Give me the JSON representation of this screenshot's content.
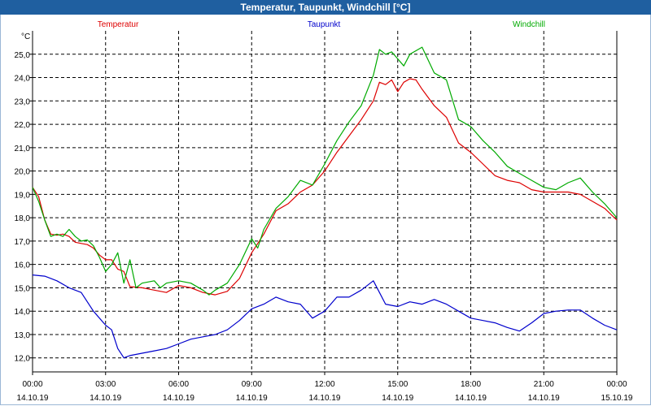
{
  "window": {
    "title": "Temperatur, Taupunkt, Windchill [°C]"
  },
  "chart_data": {
    "type": "line",
    "title": "Temperatur, Taupunkt, Windchill [°C]",
    "ylabel": "°C",
    "ylim": [
      11.4,
      26.0
    ],
    "xlim": [
      0,
      24
    ],
    "y_ticks": [
      12.0,
      13.0,
      14.0,
      15.0,
      16.0,
      17.0,
      18.0,
      19.0,
      20.0,
      21.0,
      22.0,
      23.0,
      24.0,
      25.0
    ],
    "y_tick_labels": [
      "12,0",
      "13,0",
      "14,0",
      "15,0",
      "16,0",
      "17,0",
      "18,0",
      "19,0",
      "20,0",
      "21,0",
      "22,0",
      "23,0",
      "24,0",
      "25,0"
    ],
    "x_ticks": [
      {
        "h": 0,
        "time": "00:00",
        "date": "14.10.19"
      },
      {
        "h": 3,
        "time": "03:00",
        "date": "14.10.19"
      },
      {
        "h": 6,
        "time": "06:00",
        "date": "14.10.19"
      },
      {
        "h": 9,
        "time": "09:00",
        "date": "14.10.19"
      },
      {
        "h": 12,
        "time": "12:00",
        "date": "14.10.19"
      },
      {
        "h": 15,
        "time": "15:00",
        "date": "14.10.19"
      },
      {
        "h": 18,
        "time": "18:00",
        "date": "14.10.19"
      },
      {
        "h": 21,
        "time": "21:00",
        "date": "14.10.19"
      },
      {
        "h": 24,
        "time": "00:00",
        "date": "15.10.19"
      }
    ],
    "grid": true,
    "series": [
      {
        "name": "Temperatur",
        "color": "#dd0000",
        "points": [
          [
            0,
            19.3
          ],
          [
            0.25,
            18.9
          ],
          [
            0.5,
            17.9
          ],
          [
            0.75,
            17.3
          ],
          [
            1.0,
            17.25
          ],
          [
            1.25,
            17.3
          ],
          [
            1.5,
            17.2
          ],
          [
            1.75,
            16.95
          ],
          [
            2.0,
            16.9
          ],
          [
            2.25,
            16.85
          ],
          [
            2.5,
            16.7
          ],
          [
            2.75,
            16.4
          ],
          [
            3.0,
            16.2
          ],
          [
            3.25,
            16.2
          ],
          [
            3.5,
            15.8
          ],
          [
            3.75,
            15.7
          ],
          [
            4.0,
            15.05
          ],
          [
            4.5,
            15.0
          ],
          [
            5.0,
            14.9
          ],
          [
            5.5,
            14.8
          ],
          [
            6.0,
            15.1
          ],
          [
            6.5,
            15.0
          ],
          [
            7.0,
            14.8
          ],
          [
            7.5,
            14.7
          ],
          [
            8.0,
            14.85
          ],
          [
            8.5,
            15.4
          ],
          [
            9.0,
            16.5
          ],
          [
            9.5,
            17.3
          ],
          [
            10.0,
            18.3
          ],
          [
            10.5,
            18.6
          ],
          [
            11.0,
            19.1
          ],
          [
            11.5,
            19.4
          ],
          [
            12.0,
            20.0
          ],
          [
            12.5,
            20.8
          ],
          [
            13.0,
            21.5
          ],
          [
            13.5,
            22.2
          ],
          [
            14.0,
            23.0
          ],
          [
            14.25,
            23.8
          ],
          [
            14.5,
            23.7
          ],
          [
            14.75,
            23.9
          ],
          [
            15.0,
            23.4
          ],
          [
            15.25,
            23.8
          ],
          [
            15.5,
            23.95
          ],
          [
            15.75,
            23.9
          ],
          [
            16.0,
            23.5
          ],
          [
            16.5,
            22.8
          ],
          [
            17.0,
            22.3
          ],
          [
            17.5,
            21.2
          ],
          [
            18.0,
            20.8
          ],
          [
            18.5,
            20.3
          ],
          [
            19.0,
            19.8
          ],
          [
            19.5,
            19.6
          ],
          [
            20.0,
            19.5
          ],
          [
            20.5,
            19.2
          ],
          [
            21.0,
            19.1
          ],
          [
            21.5,
            19.1
          ],
          [
            22.0,
            19.1
          ],
          [
            22.5,
            19.0
          ],
          [
            23.0,
            18.7
          ],
          [
            23.5,
            18.4
          ],
          [
            24.0,
            17.9
          ]
        ]
      },
      {
        "name": "Taupunkt",
        "color": "#0000cc",
        "points": [
          [
            0,
            15.55
          ],
          [
            0.5,
            15.5
          ],
          [
            1.0,
            15.3
          ],
          [
            1.5,
            15.0
          ],
          [
            2.0,
            14.8
          ],
          [
            2.5,
            14.0
          ],
          [
            3.0,
            13.4
          ],
          [
            3.25,
            13.2
          ],
          [
            3.5,
            12.4
          ],
          [
            3.75,
            12.0
          ],
          [
            4.0,
            12.1
          ],
          [
            4.5,
            12.2
          ],
          [
            5.0,
            12.3
          ],
          [
            5.5,
            12.4
          ],
          [
            6.0,
            12.6
          ],
          [
            6.5,
            12.8
          ],
          [
            7.0,
            12.9
          ],
          [
            7.5,
            13.0
          ],
          [
            8.0,
            13.2
          ],
          [
            8.5,
            13.6
          ],
          [
            9.0,
            14.1
          ],
          [
            9.5,
            14.3
          ],
          [
            10.0,
            14.6
          ],
          [
            10.5,
            14.4
          ],
          [
            11.0,
            14.3
          ],
          [
            11.5,
            13.7
          ],
          [
            12.0,
            14.0
          ],
          [
            12.5,
            14.6
          ],
          [
            13.0,
            14.6
          ],
          [
            13.5,
            14.9
          ],
          [
            14.0,
            15.3
          ],
          [
            14.25,
            14.8
          ],
          [
            14.5,
            14.3
          ],
          [
            15.0,
            14.2
          ],
          [
            15.5,
            14.4
          ],
          [
            16.0,
            14.3
          ],
          [
            16.5,
            14.5
          ],
          [
            17.0,
            14.3
          ],
          [
            17.5,
            14.0
          ],
          [
            18.0,
            13.7
          ],
          [
            18.5,
            13.6
          ],
          [
            19.0,
            13.5
          ],
          [
            19.5,
            13.3
          ],
          [
            20.0,
            13.15
          ],
          [
            20.5,
            13.5
          ],
          [
            21.0,
            13.9
          ],
          [
            21.5,
            14.0
          ],
          [
            22.0,
            14.05
          ],
          [
            22.5,
            14.05
          ],
          [
            23.0,
            13.7
          ],
          [
            23.5,
            13.4
          ],
          [
            24.0,
            13.2
          ]
        ]
      },
      {
        "name": "Windchill",
        "color": "#00aa00",
        "points": [
          [
            0,
            19.3
          ],
          [
            0.25,
            18.7
          ],
          [
            0.5,
            17.9
          ],
          [
            0.75,
            17.2
          ],
          [
            1.0,
            17.3
          ],
          [
            1.25,
            17.2
          ],
          [
            1.5,
            17.5
          ],
          [
            1.75,
            17.2
          ],
          [
            2.0,
            17.0
          ],
          [
            2.25,
            17.05
          ],
          [
            2.5,
            16.8
          ],
          [
            2.75,
            16.3
          ],
          [
            3.0,
            15.7
          ],
          [
            3.25,
            16.0
          ],
          [
            3.5,
            16.5
          ],
          [
            3.75,
            15.2
          ],
          [
            4.0,
            16.2
          ],
          [
            4.25,
            15.0
          ],
          [
            4.5,
            15.2
          ],
          [
            5.0,
            15.3
          ],
          [
            5.25,
            15.0
          ],
          [
            5.5,
            15.2
          ],
          [
            6.0,
            15.3
          ],
          [
            6.5,
            15.2
          ],
          [
            7.0,
            14.9
          ],
          [
            7.25,
            14.7
          ],
          [
            7.5,
            14.9
          ],
          [
            8.0,
            15.2
          ],
          [
            8.5,
            16.0
          ],
          [
            9.0,
            17.1
          ],
          [
            9.25,
            16.7
          ],
          [
            9.5,
            17.5
          ],
          [
            10.0,
            18.4
          ],
          [
            10.5,
            18.9
          ],
          [
            11.0,
            19.6
          ],
          [
            11.5,
            19.4
          ],
          [
            12.0,
            20.3
          ],
          [
            12.5,
            21.3
          ],
          [
            13.0,
            22.1
          ],
          [
            13.5,
            22.8
          ],
          [
            14.0,
            24.1
          ],
          [
            14.25,
            25.2
          ],
          [
            14.5,
            25.0
          ],
          [
            14.75,
            25.1
          ],
          [
            15.0,
            24.8
          ],
          [
            15.25,
            24.5
          ],
          [
            15.5,
            25.0
          ],
          [
            16.0,
            25.3
          ],
          [
            16.5,
            24.2
          ],
          [
            17.0,
            23.9
          ],
          [
            17.5,
            22.2
          ],
          [
            18.0,
            21.9
          ],
          [
            18.5,
            21.3
          ],
          [
            19.0,
            20.8
          ],
          [
            19.5,
            20.2
          ],
          [
            20.0,
            19.9
          ],
          [
            20.5,
            19.6
          ],
          [
            21.0,
            19.3
          ],
          [
            21.5,
            19.2
          ],
          [
            22.0,
            19.5
          ],
          [
            22.5,
            19.7
          ],
          [
            23.0,
            19.1
          ],
          [
            23.5,
            18.6
          ],
          [
            24.0,
            18.0
          ]
        ]
      }
    ]
  }
}
